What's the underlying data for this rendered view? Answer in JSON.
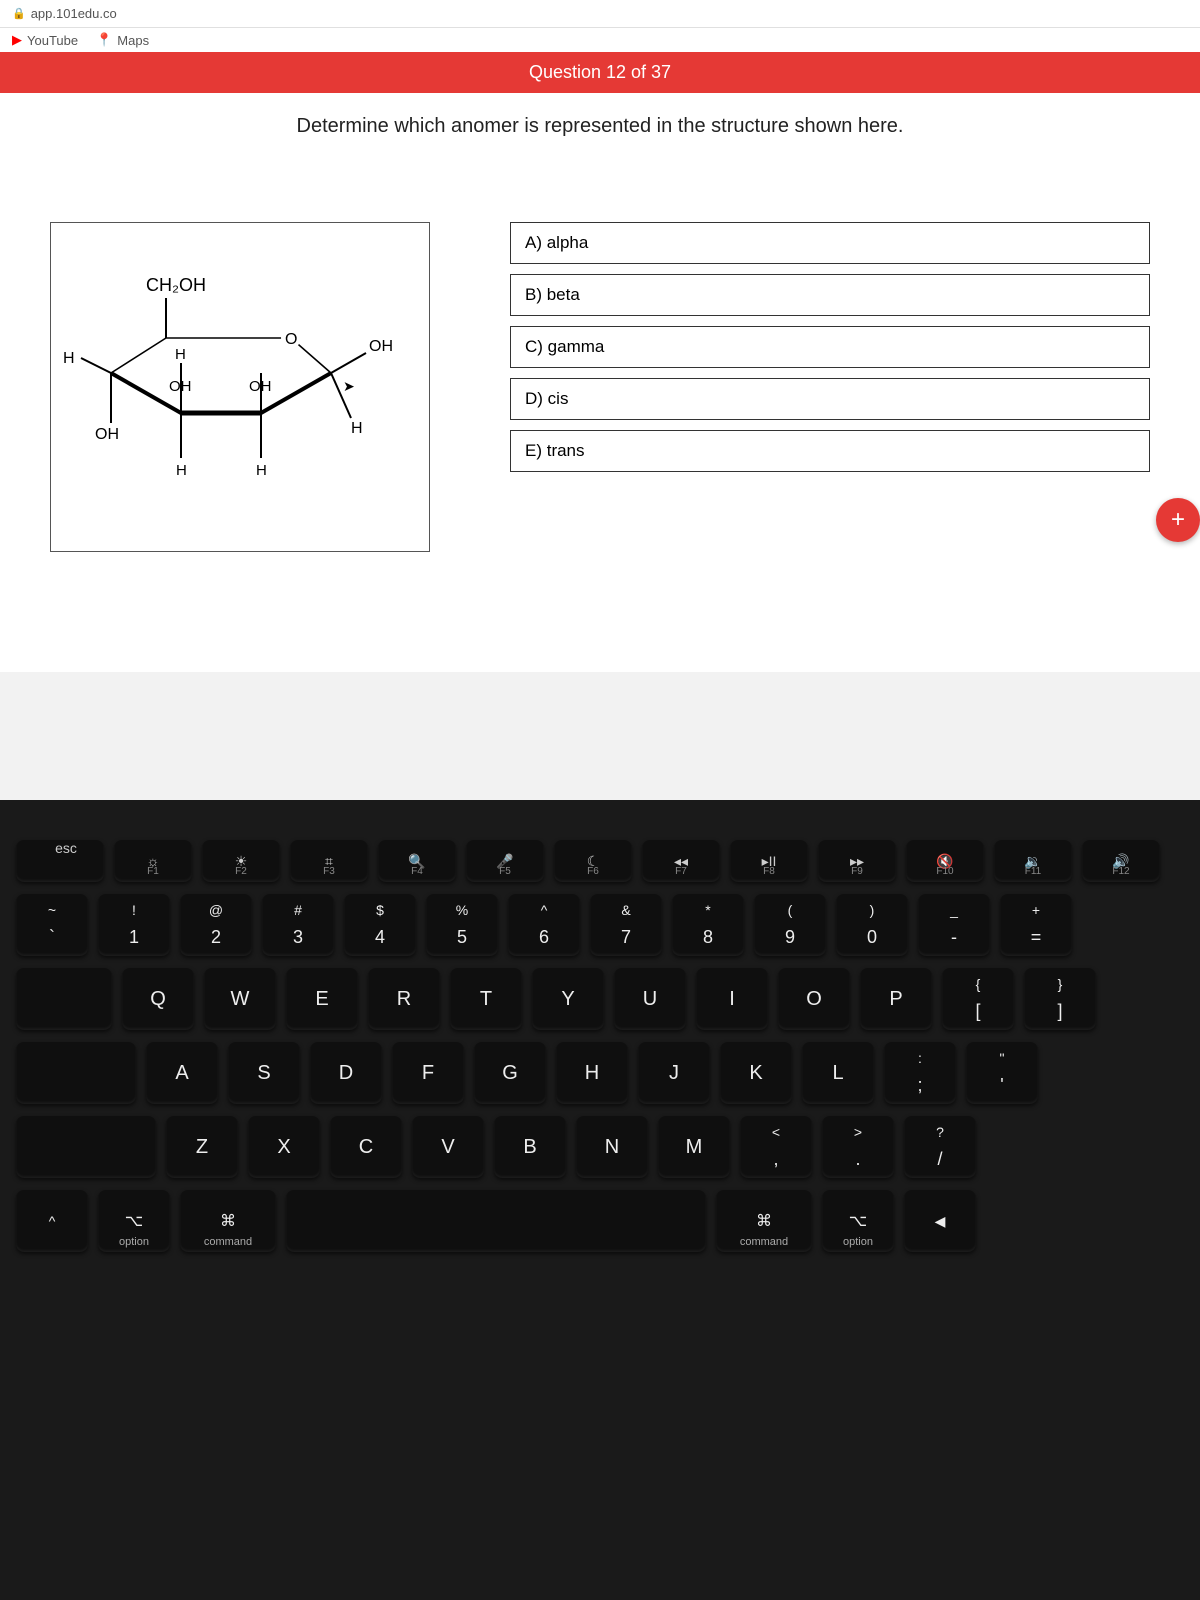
{
  "bookmarks": {
    "url_hint": "app.101edu.co",
    "items": [
      "YouTube",
      "Maps"
    ]
  },
  "banner": {
    "text": "Question 12 of 37",
    "bg": "#e53935",
    "fg": "#ffffff"
  },
  "prompt": "Determine which anomer is represented in the structure shown here.",
  "structure": {
    "top_label": "CH₂OH",
    "ring_atoms": {
      "oxygen": "O"
    },
    "substituents": {
      "left_eq": "H",
      "left_ax": "OH",
      "c2_up": "H",
      "c2_down": "H",
      "c2_mid": "OH",
      "c3_up": "OH",
      "c3_down": "H",
      "right_eq": "OH",
      "right_ax": "H"
    }
  },
  "answers": [
    {
      "label": "A) alpha"
    },
    {
      "label": "B) beta"
    },
    {
      "label": "C) gamma"
    },
    {
      "label": "D) cis"
    },
    {
      "label": "E) trans"
    }
  ],
  "fab": {
    "glyph": "+"
  },
  "keyboard": {
    "fn_row": [
      {
        "g": "esc",
        "f": ""
      },
      {
        "g": "☼",
        "f": "F1"
      },
      {
        "g": "☀",
        "f": "F2"
      },
      {
        "g": "⌗",
        "f": "F3"
      },
      {
        "g": "🔍",
        "f": "F4"
      },
      {
        "g": "🎤",
        "f": "F5"
      },
      {
        "g": "☾",
        "f": "F6"
      },
      {
        "g": "◂◂",
        "f": "F7"
      },
      {
        "g": "▸II",
        "f": "F8"
      },
      {
        "g": "▸▸",
        "f": "F9"
      },
      {
        "g": "🔇",
        "f": "F10"
      },
      {
        "g": "🔉",
        "f": "F11"
      },
      {
        "g": "🔊",
        "f": "F12"
      }
    ],
    "num_row": [
      {
        "u": "~",
        "l": "`"
      },
      {
        "u": "!",
        "l": "1"
      },
      {
        "u": "@",
        "l": "2"
      },
      {
        "u": "#",
        "l": "3"
      },
      {
        "u": "$",
        "l": "4"
      },
      {
        "u": "%",
        "l": "5"
      },
      {
        "u": "^",
        "l": "6"
      },
      {
        "u": "&",
        "l": "7"
      },
      {
        "u": "*",
        "l": "8"
      },
      {
        "u": "(",
        "l": "9"
      },
      {
        "u": ")",
        "l": "0"
      },
      {
        "u": "_",
        "l": "-"
      },
      {
        "u": "+",
        "l": "="
      }
    ],
    "row_q": [
      "Q",
      "W",
      "E",
      "R",
      "T",
      "Y",
      "U",
      "I",
      "O",
      "P"
    ],
    "row_q_tail": [
      {
        "u": "{",
        "l": "["
      },
      {
        "u": "}",
        "l": "]"
      }
    ],
    "row_a": [
      "A",
      "S",
      "D",
      "F",
      "G",
      "H",
      "J",
      "K",
      "L"
    ],
    "row_a_tail": [
      {
        "u": ":",
        "l": ";"
      },
      {
        "u": "\"",
        "l": "'"
      }
    ],
    "row_z": [
      "Z",
      "X",
      "C",
      "V",
      "B",
      "N",
      "M"
    ],
    "row_z_tail": [
      {
        "u": "<",
        "l": ","
      },
      {
        "u": ">",
        "l": "."
      },
      {
        "u": "?",
        "l": "/"
      }
    ],
    "mods": {
      "option": "option",
      "command": "command",
      "opt_glyph": "⌥",
      "cmd_glyph": "⌘"
    }
  }
}
